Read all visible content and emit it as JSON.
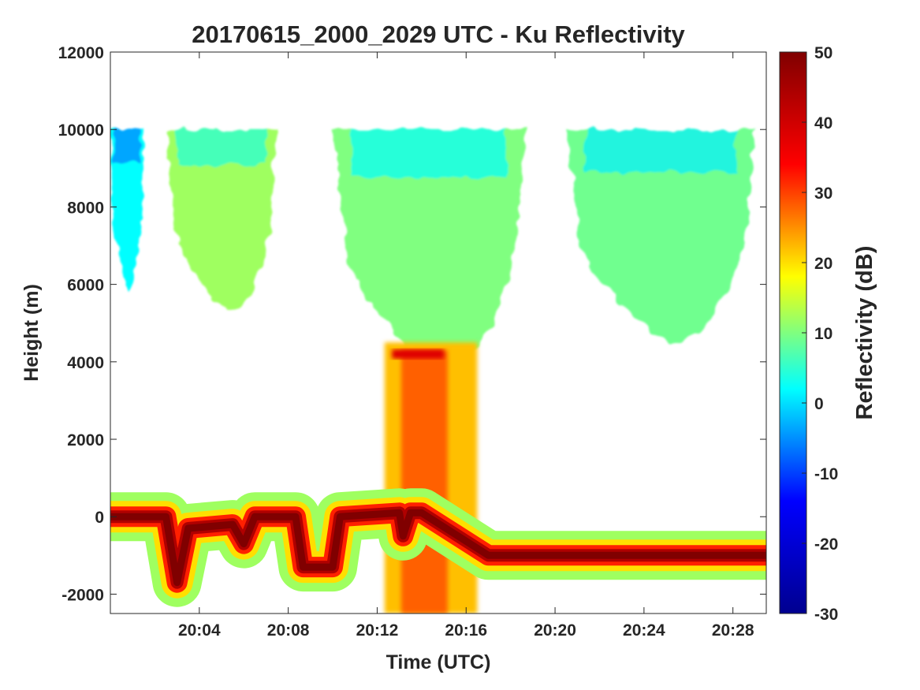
{
  "chart_data": {
    "type": "heatmap",
    "title": "20170615_2000_2029 UTC - Ku Reflectivity",
    "xlabel": "Time (UTC)",
    "ylabel": "Height (m)",
    "colorbar_label": "Reflectivity (dB)",
    "xlim": [
      "20:00",
      "20:29:30"
    ],
    "ylim": [
      -2500,
      12000
    ],
    "x_ticks": [
      "20:04",
      "20:08",
      "20:12",
      "20:16",
      "20:20",
      "20:24",
      "20:28"
    ],
    "y_ticks": [
      -2000,
      0,
      2000,
      4000,
      6000,
      8000,
      10000,
      12000
    ],
    "color_range": [
      -30,
      50
    ],
    "colorbar_ticks": [
      -30,
      -20,
      -10,
      0,
      10,
      20,
      30,
      40,
      50
    ],
    "colormap": "jet",
    "colormap_stops": [
      "#00008f",
      "#0000ff",
      "#00ffff",
      "#ffff00",
      "#ff0000",
      "#800000"
    ],
    "grid": false,
    "features": {
      "surface_return": {
        "heights_m": [
          [
            "20:00",
            0
          ],
          [
            "20:02:30",
            0
          ],
          [
            "20:03",
            -1700
          ],
          [
            "20:03:30",
            -300
          ],
          [
            "20:05:30",
            -200
          ],
          [
            "20:06",
            -700
          ],
          [
            "20:06:30",
            0
          ],
          [
            "20:08:20",
            0
          ],
          [
            "20:08:40",
            -1300
          ],
          [
            "20:10",
            -1300
          ],
          [
            "20:10:20",
            0
          ],
          [
            "20:13",
            100
          ],
          [
            "20:13:10",
            -500
          ],
          [
            "20:13:30",
            100
          ],
          [
            "20:14",
            100
          ],
          [
            "20:17",
            -1000
          ],
          [
            "20:29:30",
            -1000
          ]
        ],
        "reflectivity_dB": 50
      },
      "bright_band": {
        "time_range": [
          "20:12:40",
          "20:15:00"
        ],
        "height_m": 4200,
        "reflectivity_dB": 38
      },
      "precipitation_core": {
        "time_range": [
          "20:12:20",
          "20:16:30"
        ],
        "height_range_m": [
          -2500,
          4500
        ],
        "reflectivity_dB": 28
      },
      "upper_cloud_segments": [
        {
          "time_range": [
            "20:00",
            "20:01:30"
          ],
          "height_range_m": [
            5800,
            10000
          ],
          "reflectivity_dB": 2
        },
        {
          "time_range": [
            "20:02:30",
            "20:07:30"
          ],
          "height_range_m": [
            5300,
            10000
          ],
          "reflectivity_dB": 12
        },
        {
          "time_range": [
            "20:10:00",
            "20:18:40"
          ],
          "height_range_m": [
            3800,
            10000
          ],
          "reflectivity_dB": 10
        },
        {
          "time_range": [
            "20:20:30",
            "20:29:00"
          ],
          "height_range_m": [
            4500,
            10000
          ],
          "reflectivity_dB": 9
        }
      ]
    }
  }
}
